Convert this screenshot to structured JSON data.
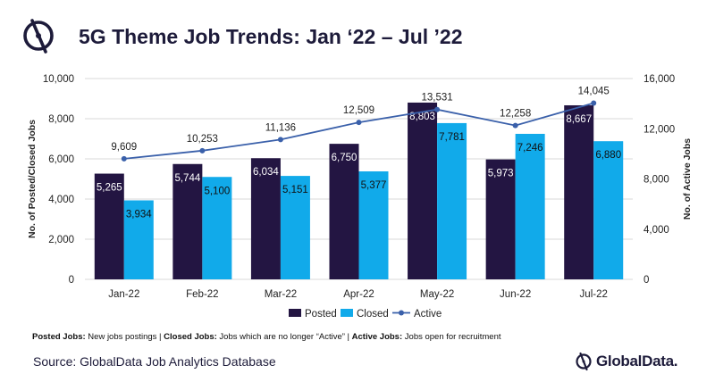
{
  "header": {
    "title": "5G Theme Job Trends: Jan ‘22 – Jul ’22",
    "logo_icon": "globaldata-logo-icon"
  },
  "colors": {
    "posted": "#231542",
    "closed": "#11aaea",
    "active": "#3a60aa",
    "axis_text": "#222222",
    "grid": "#d9d9d9"
  },
  "chart_data": {
    "type": "bar",
    "categories": [
      "Jan-22",
      "Feb-22",
      "Mar-22",
      "Apr-22",
      "May-22",
      "Jun-22",
      "Jul-22"
    ],
    "series": [
      {
        "name": "Posted",
        "type": "bar",
        "axis": "left",
        "values": [
          5265,
          5744,
          6034,
          6750,
          8803,
          5973,
          8667
        ],
        "labels": [
          "5,265",
          "5,744",
          "6,034",
          "6,750",
          "8,803",
          "5,973",
          "8,667"
        ]
      },
      {
        "name": "Closed",
        "type": "bar",
        "axis": "left",
        "values": [
          3934,
          5100,
          5151,
          5377,
          7781,
          7246,
          6880
        ],
        "labels": [
          "3,934",
          "5,100",
          "5,151",
          "5,377",
          "7,781",
          "7,246",
          "6,880"
        ]
      },
      {
        "name": "Active",
        "type": "line",
        "axis": "right",
        "values": [
          9609,
          10253,
          11136,
          12509,
          13531,
          12258,
          14045
        ],
        "labels": [
          "9,609",
          "10,253",
          "11,136",
          "12,509",
          "13,531",
          "12,258",
          "14,045"
        ]
      }
    ],
    "ylabel": "No. of Posted/Closed Jobs",
    "y2label": "No. of Active Jobs",
    "ylim": [
      0,
      10000
    ],
    "y2lim": [
      0,
      16000
    ],
    "yticks": [
      "0",
      "2,000",
      "4,000",
      "6,000",
      "8,000",
      "10,000"
    ],
    "y2ticks": [
      "0",
      "4,000",
      "8,000",
      "12,000",
      "16,000"
    ],
    "grid": true,
    "legend": {
      "position": "bottom",
      "entries": [
        "Posted",
        "Closed",
        "Active"
      ]
    }
  },
  "footnote": {
    "posted_term": "Posted Jobs:",
    "posted_def": " New jobs postings | ",
    "closed_term": "Closed Jobs:",
    "closed_def": " Jobs which are no longer “Active” | ",
    "active_term": "Active Jobs:",
    "active_def": " Jobs open for recruitment"
  },
  "footer": {
    "source": "Source: GlobalData Job Analytics Database",
    "brand": "GlobalData.",
    "brand_icon": "globaldata-logo-icon"
  }
}
